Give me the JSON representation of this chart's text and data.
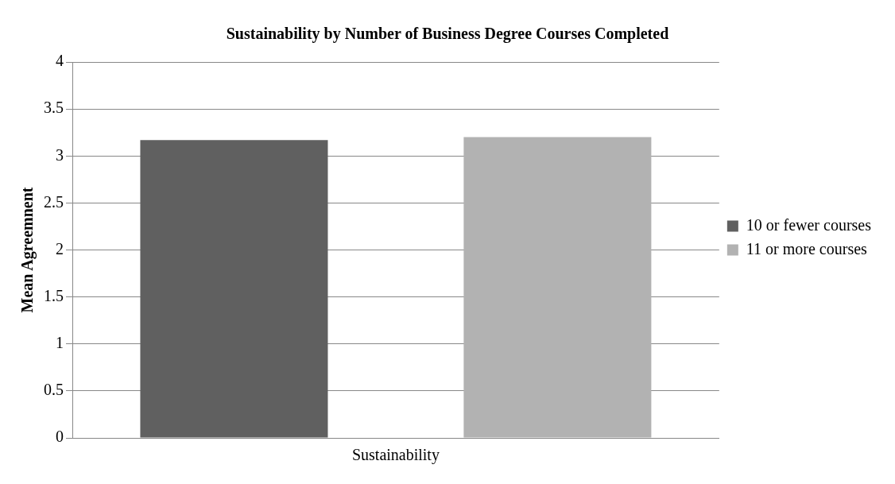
{
  "chart_data": {
    "type": "bar",
    "title": "Sustainability by Number of Business Degree Courses Completed",
    "ylabel": "Mean Agreemnent",
    "categories": [
      "Sustainability"
    ],
    "series": [
      {
        "name": "10 or fewer courses",
        "color": "#606060",
        "values": [
          3.17
        ]
      },
      {
        "name": "11 or more courses",
        "color": "#b2b2b2",
        "values": [
          3.2
        ]
      }
    ],
    "ylim": [
      0,
      4
    ],
    "yticks": [
      0,
      0.5,
      1,
      1.5,
      2,
      2.5,
      3,
      3.5,
      4
    ],
    "grid": "y",
    "legend": "right"
  }
}
